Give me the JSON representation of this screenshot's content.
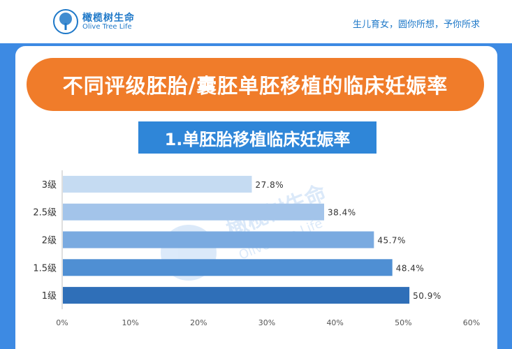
{
  "brand": {
    "name_cn": "橄榄树生命",
    "name_en": "Olive Tree Life"
  },
  "slogan": "生儿育女，圆你所想，予你所求",
  "main_title": "不同评级胚胎/囊胚单胚移植的临床妊娠率",
  "sub_title": "1.单胚胎移植临床妊娠率",
  "watermark": {
    "cn": "橄榄树生命",
    "en": "Olive Tree Life"
  },
  "colors": {
    "accent_orange": "#f07c2a",
    "panel_blue": "#3d8ae3",
    "subtitle_blue": "#2f86d8",
    "bar_colors": [
      "#c5dbf2",
      "#a3c4ea",
      "#7aaae0",
      "#4f8fd3",
      "#2f6fb8"
    ]
  },
  "chart_data": {
    "type": "bar",
    "orientation": "horizontal",
    "categories": [
      "3级",
      "2.5级",
      "2级",
      "1.5级",
      "1级"
    ],
    "values": [
      27.8,
      38.4,
      45.7,
      48.4,
      50.9
    ],
    "value_labels": [
      "27.8%",
      "38.4%",
      "45.7%",
      "48.4%",
      "50.9%"
    ],
    "xlim": [
      0,
      60
    ],
    "xticks": [
      "0%",
      "10%",
      "20%",
      "30%",
      "40%",
      "50%",
      "60%"
    ],
    "xlabel": "",
    "ylabel": "",
    "grid": false,
    "legend": "none"
  }
}
